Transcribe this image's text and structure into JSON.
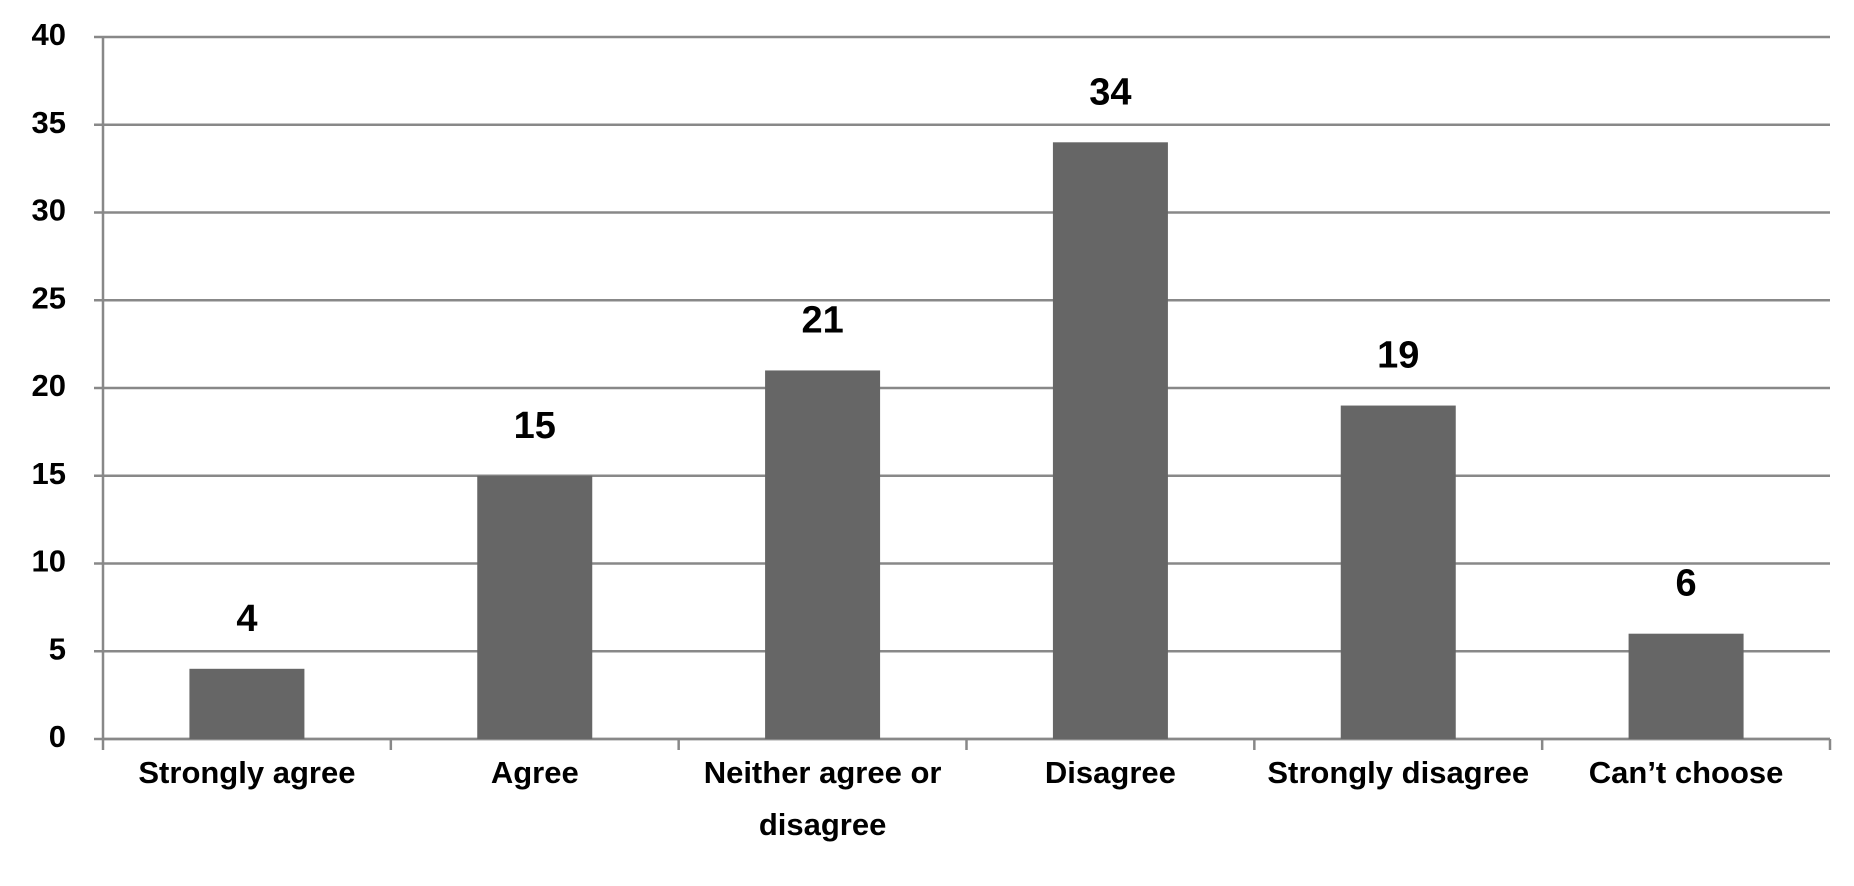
{
  "chart_data": {
    "type": "bar",
    "categories": [
      "Strongly agree",
      "Agree",
      "Neither agree or disagree",
      "Disagree",
      "Strongly disagree",
      "Can’t choose"
    ],
    "values": [
      4,
      15,
      21,
      34,
      19,
      6
    ],
    "color": "#666666",
    "ylim": [
      0,
      40
    ],
    "yticks": [
      0,
      5,
      10,
      15,
      20,
      25,
      30,
      35,
      40
    ],
    "grid": true
  }
}
